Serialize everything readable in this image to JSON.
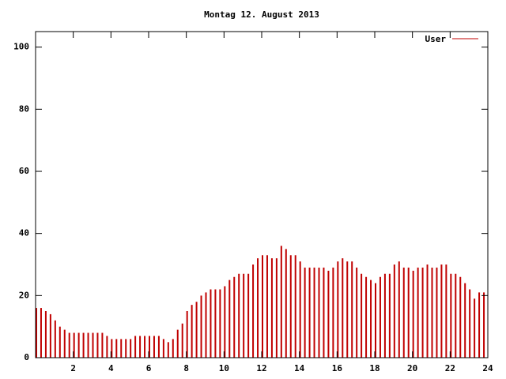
{
  "chart_data": {
    "type": "impulse",
    "title": "Montag 12. August 2013",
    "x": [
      0,
      0.25,
      0.5,
      0.75,
      1,
      1.25,
      1.5,
      1.75,
      2,
      2.25,
      2.5,
      2.75,
      3,
      3.25,
      3.5,
      3.75,
      4,
      4.25,
      4.5,
      4.75,
      5,
      5.25,
      5.5,
      5.75,
      6,
      6.25,
      6.5,
      6.75,
      7,
      7.25,
      7.5,
      7.75,
      8,
      8.25,
      8.5,
      8.75,
      9,
      9.25,
      9.5,
      9.75,
      10,
      10.25,
      10.5,
      10.75,
      11,
      11.25,
      11.5,
      11.75,
      12,
      12.25,
      12.5,
      12.75,
      13,
      13.25,
      13.5,
      13.75,
      14,
      14.25,
      14.5,
      14.75,
      15,
      15.25,
      15.5,
      15.75,
      16,
      16.25,
      16.5,
      16.75,
      17,
      17.25,
      17.5,
      17.75,
      18,
      18.25,
      18.5,
      18.75,
      19,
      19.25,
      19.5,
      19.75,
      20,
      20.25,
      20.5,
      20.75,
      21,
      21.25,
      21.5,
      21.75,
      22,
      22.25,
      22.5,
      22.75,
      23,
      23.25,
      23.5,
      23.75
    ],
    "series": [
      {
        "name": "User",
        "color": "#c00000",
        "values": [
          16,
          16,
          15,
          14,
          12,
          10,
          9,
          8,
          8,
          8,
          8,
          8,
          8,
          8,
          8,
          7,
          6,
          6,
          6,
          6,
          6,
          7,
          7,
          7,
          7,
          7,
          7,
          6,
          5,
          6,
          9,
          11,
          15,
          17,
          18,
          20,
          21,
          22,
          22,
          22,
          23,
          25,
          26,
          27,
          27,
          27,
          30,
          32,
          33,
          33,
          32,
          32,
          36,
          35,
          33,
          33,
          31,
          29,
          29,
          29,
          29,
          29,
          28,
          29,
          31,
          32,
          31,
          31,
          29,
          27,
          26,
          25,
          24,
          26,
          27,
          27,
          30,
          31,
          29,
          29,
          28,
          29,
          29,
          30,
          29,
          29,
          30,
          30,
          27,
          27,
          26,
          24,
          22,
          19,
          21,
          21
        ]
      }
    ],
    "xlim": [
      0,
      24
    ],
    "xticks": [
      2,
      4,
      6,
      8,
      10,
      12,
      14,
      16,
      18,
      20,
      22,
      24
    ],
    "ylim": [
      0,
      105
    ],
    "yticks": [
      0,
      20,
      40,
      60,
      80,
      100
    ],
    "legend": "top-right"
  }
}
